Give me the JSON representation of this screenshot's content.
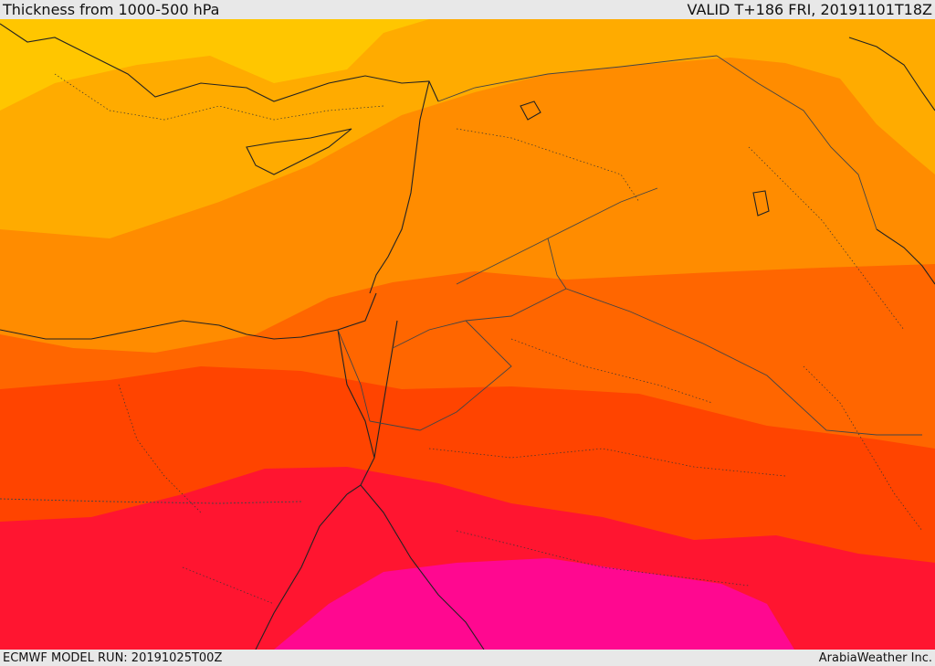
{
  "header": {
    "title": "Thickness from 1000-500 hPa",
    "valid_time": "VALID T+186 FRI, 20191101T18Z"
  },
  "footer": {
    "model_run": "ECMWF MODEL RUN: 20191025T00Z",
    "credit": "ArabiaWeather Inc."
  },
  "colors": {
    "band_1": "#ffc600",
    "band_2": "#ffab00",
    "band_3": "#ff8c00",
    "band_4": "#ff6600",
    "band_5": "#ff4400",
    "band_6": "#ff1530",
    "band_7": "#ff0890",
    "coastline": "#222222",
    "border": "#444444"
  }
}
